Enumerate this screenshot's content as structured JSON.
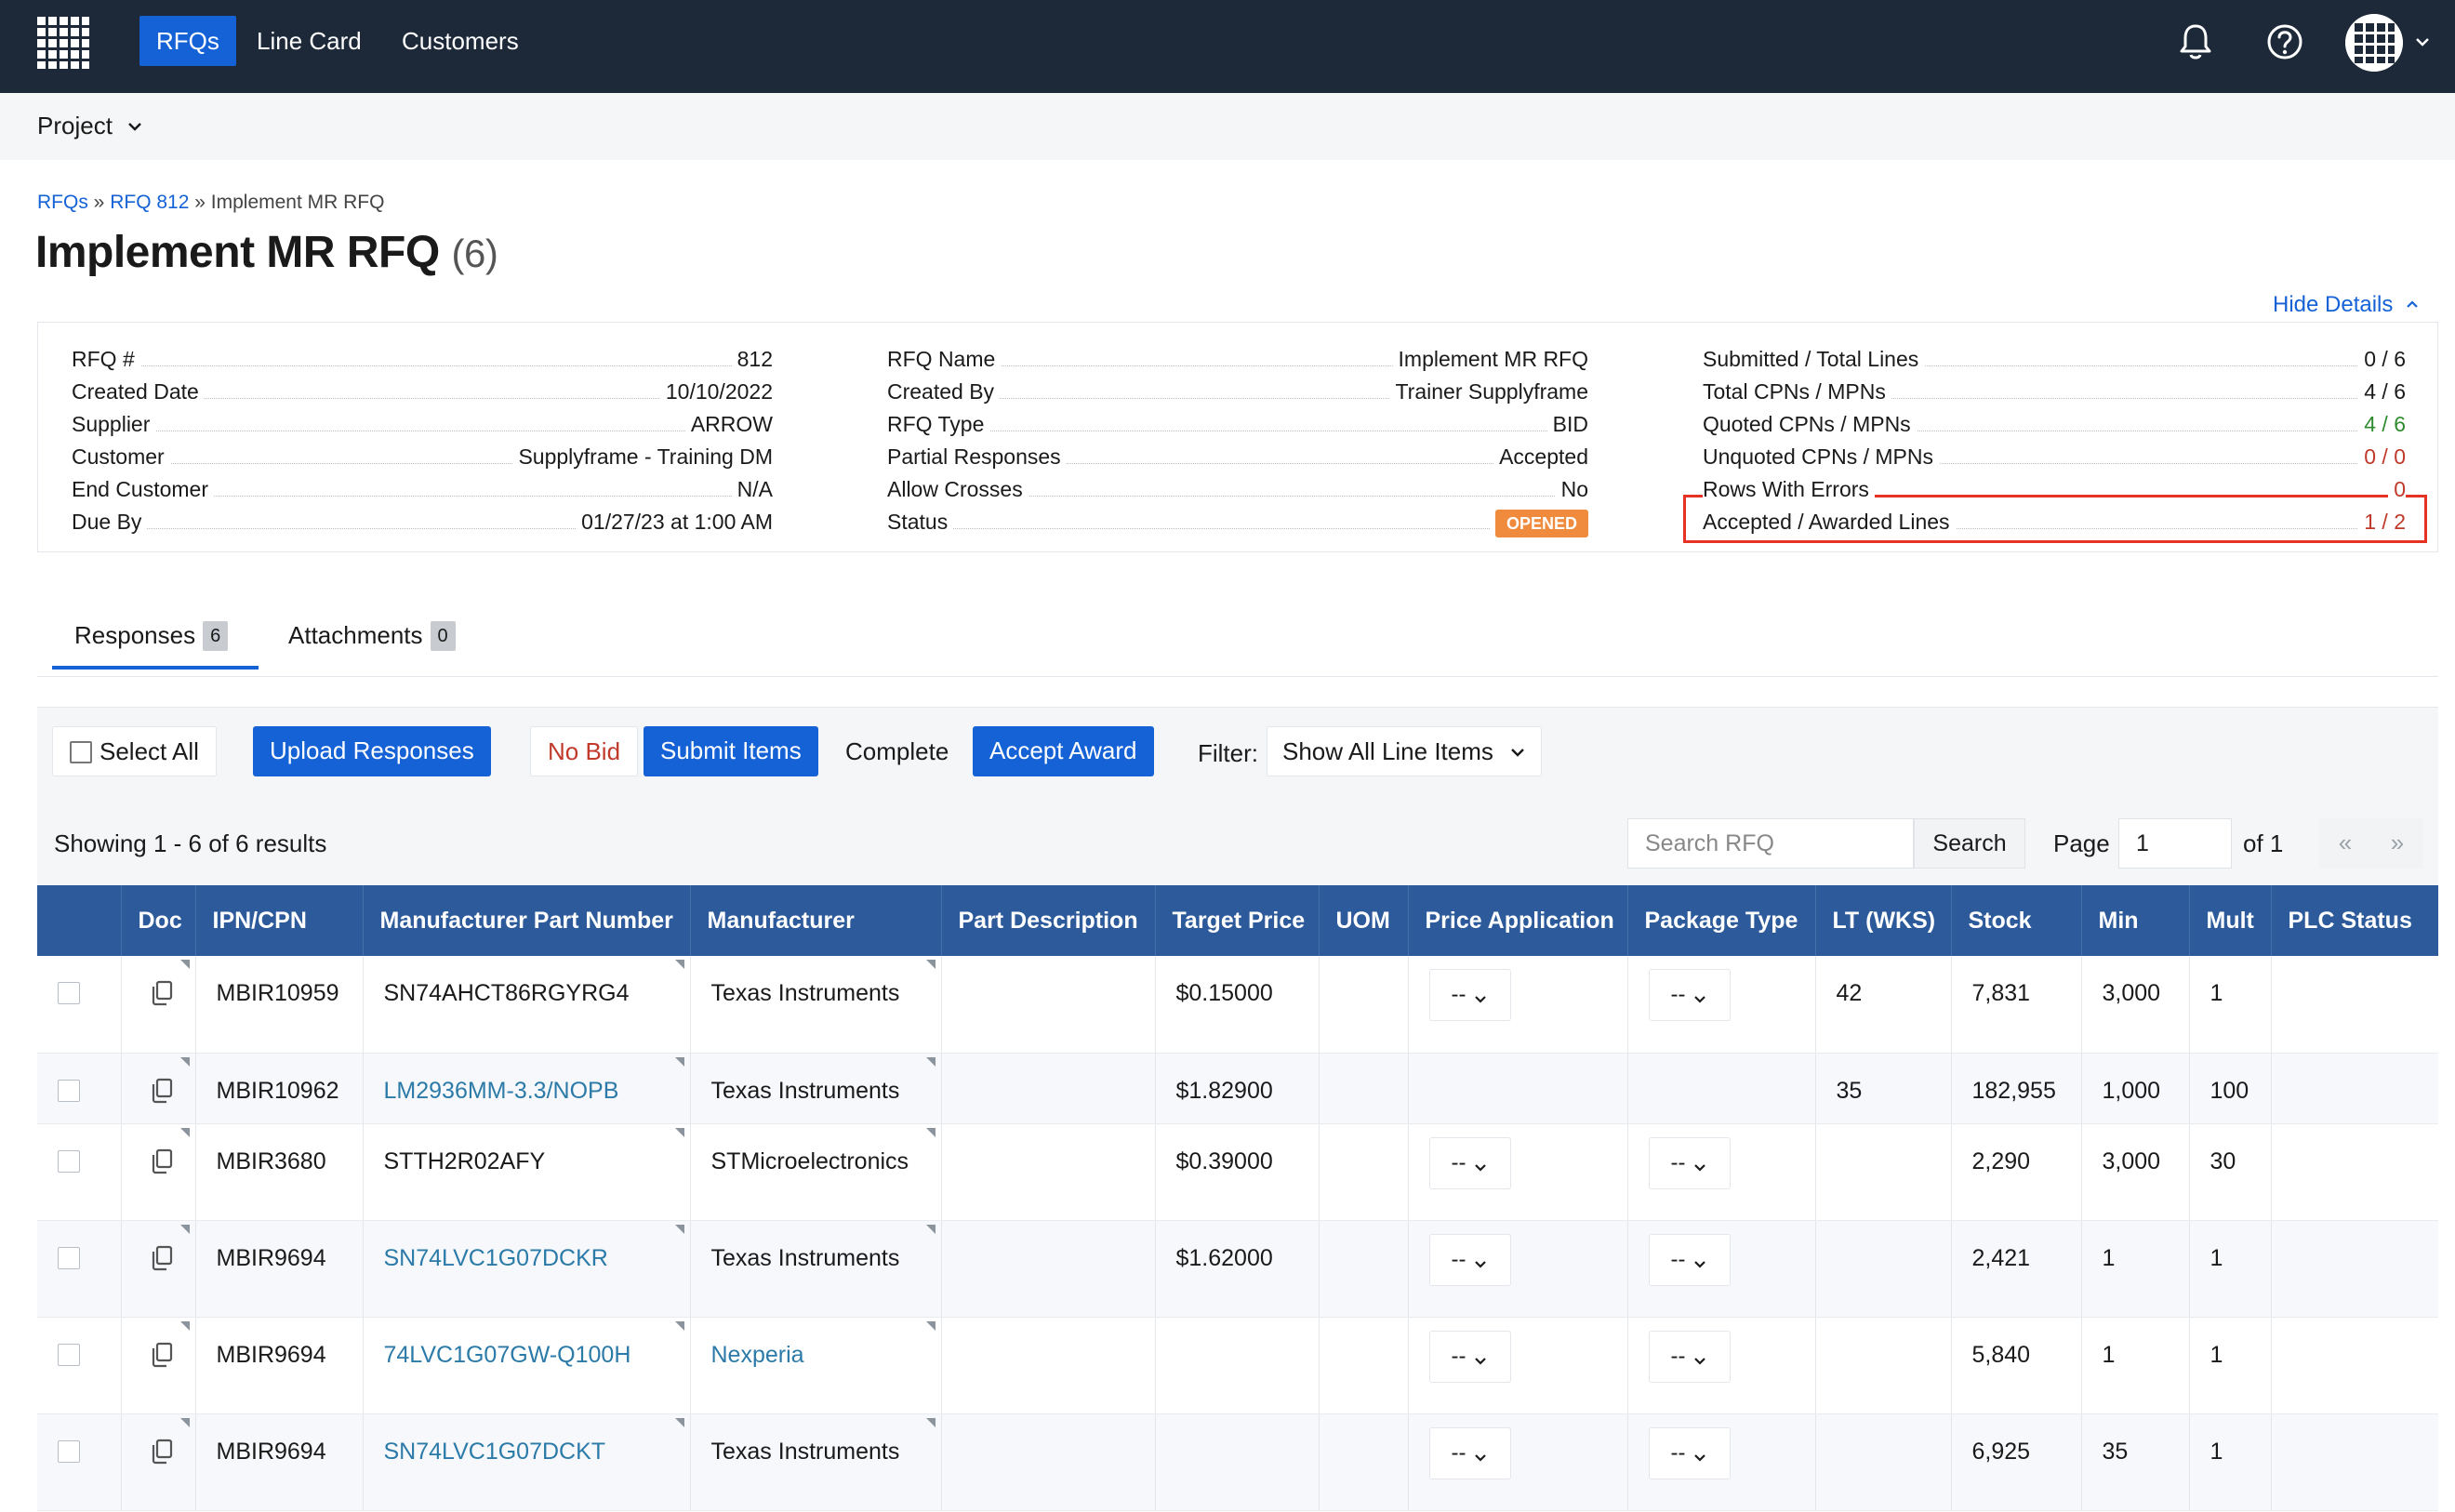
{
  "nav": {
    "links": [
      "RFQs",
      "Line Card",
      "Customers"
    ],
    "icons": [
      "bell-icon",
      "help-icon",
      "avatar-grid-icon",
      "chevron-down-icon"
    ]
  },
  "project": {
    "label": "Project"
  },
  "breadcrumb": {
    "root": "RFQs",
    "sep": "»",
    "parent": "RFQ 812",
    "current": "Implement MR RFQ"
  },
  "page": {
    "title": "Implement MR RFQ",
    "count": "(6)",
    "hide_details": "Hide Details"
  },
  "details": {
    "col1": [
      {
        "k": "RFQ #",
        "v": "812"
      },
      {
        "k": "Created Date",
        "v": "10/10/2022"
      },
      {
        "k": "Supplier",
        "v": "ARROW"
      },
      {
        "k": "Customer",
        "v": "Supplyframe - Training DM"
      },
      {
        "k": "End Customer",
        "v": "N/A"
      },
      {
        "k": "Due By",
        "v": "01/27/23 at 1:00 AM"
      }
    ],
    "col2": [
      {
        "k": "RFQ Name",
        "v": "Implement MR RFQ"
      },
      {
        "k": "Created By",
        "v": "Trainer Supplyframe"
      },
      {
        "k": "RFQ Type",
        "v": "BID"
      },
      {
        "k": "Partial Responses",
        "v": "Accepted"
      },
      {
        "k": "Allow Crosses",
        "v": "No"
      },
      {
        "k": "Status",
        "v": "OPENED"
      }
    ],
    "col3": [
      {
        "k": "Submitted / Total Lines",
        "v": "0 / 6"
      },
      {
        "k": "Total CPNs / MPNs",
        "v": "4 / 6"
      },
      {
        "k": "Quoted CPNs / MPNs",
        "v": "4 / 6"
      },
      {
        "k": "Unquoted CPNs / MPNs",
        "v": "0 / 0"
      },
      {
        "k": "Rows With Errors",
        "v": "0"
      },
      {
        "k": "Accepted / Awarded Lines",
        "v": "1 / 2"
      }
    ]
  },
  "tabs": [
    {
      "label": "Responses",
      "count": "6"
    },
    {
      "label": "Attachments",
      "count": "0"
    }
  ],
  "toolbar": {
    "select_all": "Select All",
    "upload": "Upload Responses",
    "no_bid": "No Bid",
    "submit": "Submit Items",
    "complete": "Complete",
    "accept_award": "Accept Award",
    "filter_label": "Filter:",
    "filter_value": "Show All Line Items"
  },
  "results": {
    "showing": "Showing 1 - 6 of 6 results",
    "search_placeholder": "Search RFQ",
    "search_button": "Search",
    "page_label": "Page",
    "page_value": "1",
    "page_of": "of 1",
    "prev": "«",
    "next": "»"
  },
  "table": {
    "columns": [
      "",
      "Doc",
      "IPN/CPN",
      "Manufacturer Part Number",
      "Manufacturer",
      "Part Description",
      "Target Price",
      "UOM",
      "Price Application",
      "Package Type",
      "LT (WKS)",
      "Stock",
      "Min",
      "Mult",
      "PLC Status"
    ],
    "select_placeholder": "--",
    "rows": [
      {
        "ipn": "MBIR10959",
        "mpn": "SN74AHCT86RGYRG4",
        "mfr": "Texas Instruments",
        "desc": "",
        "price": "$0.15000",
        "uom": "",
        "lt": "42",
        "stock": "7,831",
        "min": "3,000",
        "mult": "1",
        "plc": ""
      },
      {
        "ipn": "MBIR10962",
        "mpn": "LM2936MM-3.3/NOPB",
        "mfr": "Texas Instruments",
        "desc": "",
        "price": "$1.82900",
        "uom": "",
        "lt": "35",
        "stock": "182,955",
        "min": "1,000",
        "mult": "100",
        "plc": ""
      },
      {
        "ipn": "MBIR3680",
        "mpn": "STTH2R02AFY",
        "mfr": "STMicroelectronics",
        "desc": "",
        "price": "$0.39000",
        "uom": "",
        "lt": "",
        "stock": "2,290",
        "min": "3,000",
        "mult": "30",
        "plc": ""
      },
      {
        "ipn": "MBIR9694",
        "mpn": "SN74LVC1G07DCKR",
        "mfr": "Texas Instruments",
        "desc": "",
        "price": "$1.62000",
        "uom": "",
        "lt": "",
        "stock": "2,421",
        "min": "1",
        "mult": "1",
        "plc": ""
      },
      {
        "ipn": "MBIR9694",
        "mpn": "74LVC1G07GW-Q100H",
        "mfr": "Nexperia",
        "desc": "",
        "price": "",
        "uom": "",
        "lt": "",
        "stock": "5,840",
        "min": "1",
        "mult": "1",
        "plc": ""
      },
      {
        "ipn": "MBIR9694",
        "mpn": "SN74LVC1G07DCKT",
        "mfr": "Texas Instruments",
        "desc": "",
        "price": "",
        "uom": "",
        "lt": "",
        "stock": "6,925",
        "min": "35",
        "mult": "1",
        "plc": ""
      }
    ]
  }
}
